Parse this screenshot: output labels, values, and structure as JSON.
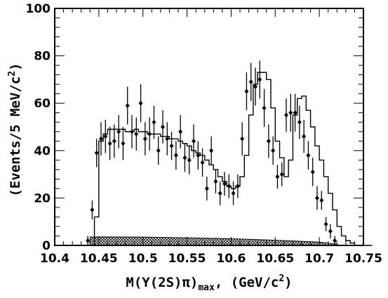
{
  "chart_data": {
    "type": "histogram",
    "xlabel": {
      "main": "M(Y(2S)π)",
      "subscript": "max",
      "unit_prefix": ",  (GeV/c",
      "unit_sup": "2",
      "unit_suffix": ")"
    },
    "ylabel": {
      "main": "(Events/5 MeV/c",
      "sup": "2",
      "suffix": ")"
    },
    "xlim": [
      10.4,
      10.75
    ],
    "ylim": [
      0,
      100
    ],
    "xticks": [
      "10.4",
      "10.45",
      "10.5",
      "10.55",
      "10.6",
      "10.65",
      "10.7",
      "10.75"
    ],
    "yticks": [
      "0",
      "20",
      "40",
      "60",
      "80",
      "100"
    ],
    "fit_histogram": {
      "bin_width": 0.005,
      "edges_start": 10.435,
      "values": [
        0,
        0,
        0,
        0,
        0,
        0,
        0,
        12,
        44,
        47,
        49,
        49,
        49,
        49,
        48,
        48,
        49,
        48,
        48,
        47,
        47,
        47,
        46,
        46,
        45,
        45,
        44,
        43,
        42,
        40,
        39,
        38,
        36,
        34,
        32,
        29,
        27,
        25,
        24,
        25,
        29,
        38,
        55,
        68,
        73,
        73,
        70,
        58,
        44,
        37,
        29,
        36,
        55,
        62,
        63,
        57,
        50,
        42,
        36,
        29,
        22,
        15,
        8,
        4,
        2,
        1,
        0,
        0,
        0,
        0
      ],
      "x0": 10.41
    },
    "background": {
      "x": [
        10.44,
        10.45,
        10.5,
        10.55,
        10.6,
        10.65,
        10.7,
        10.72
      ],
      "y": [
        3.5,
        3.6,
        3.5,
        3.2,
        2.8,
        2.2,
        1.4,
        0.5
      ]
    },
    "points": {
      "x": [
        10.4375,
        10.4425,
        10.4475,
        10.4525,
        10.4575,
        10.4625,
        10.4675,
        10.4725,
        10.4775,
        10.4825,
        10.4875,
        10.4925,
        10.4975,
        10.5025,
        10.5075,
        10.5125,
        10.5175,
        10.5225,
        10.5275,
        10.5325,
        10.5375,
        10.5425,
        10.5475,
        10.5525,
        10.5575,
        10.5625,
        10.5675,
        10.5725,
        10.5775,
        10.5825,
        10.5875,
        10.5925,
        10.5975,
        10.6025,
        10.6075,
        10.6125,
        10.6175,
        10.6225,
        10.6275,
        10.6325,
        10.6375,
        10.6425,
        10.6475,
        10.6525,
        10.6575,
        10.6625,
        10.6675,
        10.6725,
        10.6775,
        10.6825,
        10.6875,
        10.6925,
        10.6975,
        10.7025,
        10.7075,
        10.7125,
        10.7175
      ],
      "y": [
        2,
        15,
        39,
        45,
        46,
        43,
        44,
        48,
        43,
        59,
        48,
        47,
        60,
        45,
        47,
        52,
        40,
        50,
        45,
        42,
        38,
        48,
        37,
        36,
        44,
        38,
        35,
        24,
        40,
        27,
        22,
        26,
        25,
        22,
        25,
        45,
        65,
        69,
        67,
        70,
        58,
        44,
        40,
        29,
        30,
        55,
        56,
        56,
        52,
        46,
        38,
        31,
        20,
        19,
        9,
        6,
        2
      ],
      "err": [
        2,
        4,
        6,
        7,
        7,
        7,
        7,
        7,
        7,
        8,
        7,
        7,
        8,
        7,
        7,
        7,
        6,
        7,
        7,
        6,
        6,
        7,
        6,
        6,
        7,
        6,
        6,
        5,
        6,
        5,
        5,
        5,
        5,
        5,
        5,
        7,
        8,
        8,
        8,
        8,
        8,
        7,
        6,
        5,
        5,
        7,
        8,
        8,
        7,
        7,
        6,
        6,
        5,
        4,
        3,
        3,
        2
      ]
    }
  }
}
